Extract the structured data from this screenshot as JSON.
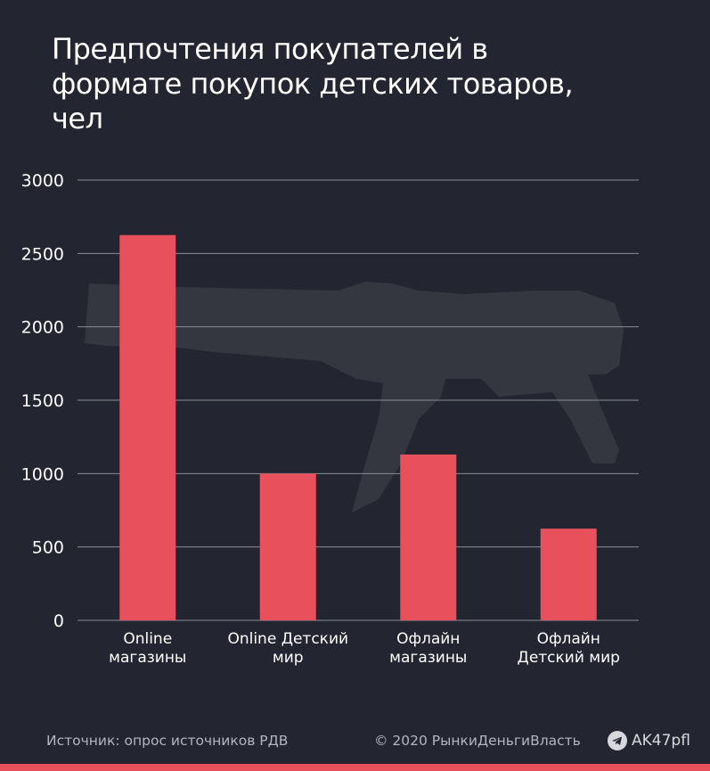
{
  "title": "Предпочтения покупателей в формате покупок детских товаров, чел",
  "colors": {
    "background": "#232630",
    "bar": "#e8505b",
    "grid": "#8a8d96",
    "text": "#ffffff",
    "footer_text": "#b3b6bf"
  },
  "footer": {
    "source": "Источник: опрос источников  РДВ",
    "copyright": "© 2020  РынкиДеньгиВласть",
    "channel": "AK47pfl",
    "channel_icon": "telegram-icon"
  },
  "watermark_icon": "rifle-silhouette",
  "chart_data": {
    "type": "bar",
    "categories": [
      [
        "Online",
        "магазины"
      ],
      [
        "Online Детский",
        "мир"
      ],
      [
        "Офлайн",
        "магазины"
      ],
      [
        "Офлайн",
        "Детский мир"
      ]
    ],
    "values": [
      2625,
      1000,
      1130,
      625
    ],
    "ylim": [
      0,
      3000
    ],
    "yticks": [
      "0",
      "500",
      "1000",
      "1500",
      "2000",
      "2500",
      "3000"
    ],
    "grid": true,
    "xlabel": "",
    "ylabel": ""
  }
}
